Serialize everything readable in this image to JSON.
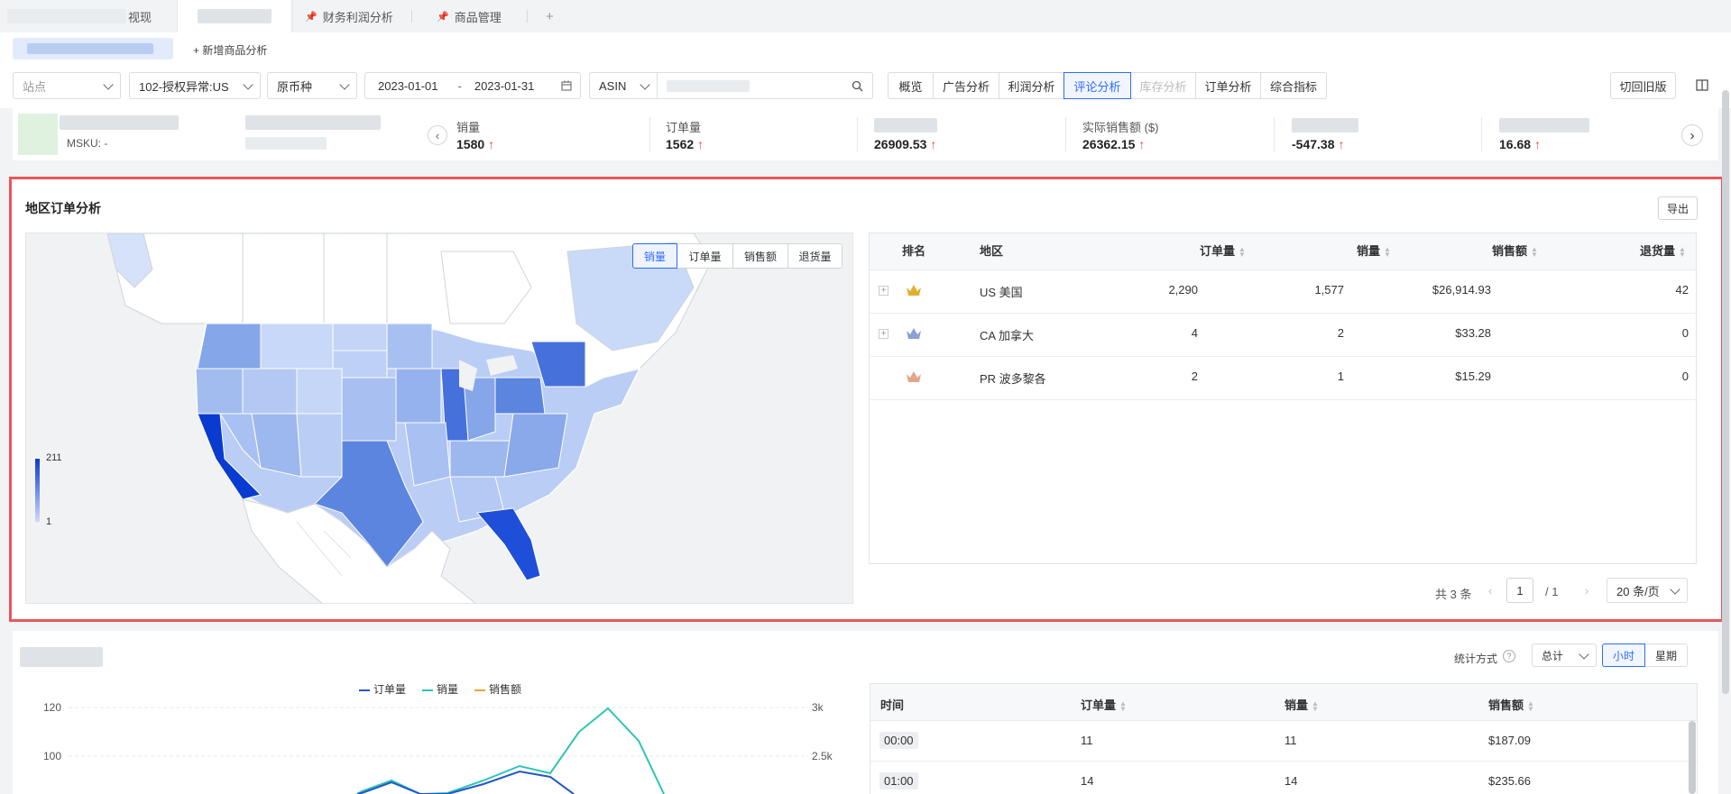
{
  "tabs": [
    {
      "label": "视现",
      "active": false
    },
    {
      "label": "",
      "active": true
    },
    {
      "label": "财务利润分析",
      "active": false
    },
    {
      "label": "商品管理",
      "active": false
    },
    {
      "label": "+",
      "active": false
    }
  ],
  "subbar": {
    "add_label": "+ 新增商品分析"
  },
  "filters": {
    "site_placeholder": "站点",
    "shop": "102-授权异常:US",
    "currency": "原币种",
    "date_start": "2023-01-01",
    "date_sep": "-",
    "date_end": "2023-01-31",
    "asin_type": "ASIN",
    "view_tabs": [
      "概览",
      "广告分析",
      "利润分析",
      "评论分析",
      "库存分析",
      "订单分析",
      "综合指标"
    ],
    "view_tab_active": "评论分析",
    "view_tab_disabled": "库存分析",
    "old_version": "切回旧版"
  },
  "metrics": {
    "msku_label": "MSKU: -",
    "items": [
      {
        "label": "销量",
        "value": "1580"
      },
      {
        "label": "订单量",
        "value": "1562"
      },
      {
        "label": "",
        "value": "26909.53"
      },
      {
        "label": "实际销售额 ($)",
        "value": "26362.15"
      },
      {
        "label": "",
        "value": "-547.38"
      },
      {
        "label": "",
        "value": "16.68"
      }
    ],
    "up_arrow": "↑"
  },
  "panel": {
    "title": "地区订单分析",
    "export": "导出",
    "map_tabs": [
      "销量",
      "订单量",
      "销售额",
      "退货量"
    ],
    "map_tab_active": "销量",
    "legend_max": "211",
    "legend_min": "1",
    "state_colors": {
      "highest": "#0a3bd0",
      "high": "#4a78e0",
      "mid": "#7da0ea",
      "low": "#b6cbf5",
      "lowest": "#cfdcf8",
      "none": "#ffffff"
    }
  },
  "table": {
    "headers": [
      "排名",
      "地区",
      "订单量",
      "销量",
      "销售额",
      "退货量"
    ],
    "rows": [
      {
        "region": "US 美国",
        "orders": "2,290",
        "sales": "1,577",
        "amount": "$26,914.93",
        "returns": "42",
        "crown": "#e0b030"
      },
      {
        "region": "CA 加拿大",
        "orders": "4",
        "sales": "2",
        "amount": "$33.28",
        "returns": "0",
        "crown": "#8aa0d6"
      },
      {
        "region": "PR 波多黎各",
        "orders": "2",
        "sales": "1",
        "amount": "$15.29",
        "returns": "0",
        "crown": "#e3a58a"
      }
    ],
    "pagination": {
      "total": "共 3 条",
      "page": "1",
      "of": "/ 1",
      "page_size": "20 条/页"
    }
  },
  "lower": {
    "stat_label": "统计方式",
    "stat_value": "总计",
    "toggle": [
      "小时",
      "星期"
    ],
    "toggle_active": "小时",
    "legend": [
      {
        "name": "订单量",
        "color": "#2457c5"
      },
      {
        "name": "销量",
        "color": "#2ec4b6"
      },
      {
        "name": "销售额",
        "color": "#f0a13a"
      }
    ],
    "y_left": [
      "120",
      "100"
    ],
    "y_right": [
      "3k",
      "2.5k"
    ],
    "hour_table": {
      "headers": [
        "时间",
        "订单量",
        "销量",
        "销售额"
      ],
      "rows": [
        {
          "time": "00:00",
          "orders": "11",
          "sales": "11",
          "amount": "$187.09"
        },
        {
          "time": "01:00",
          "orders": "14",
          "sales": "14",
          "amount": "$235.66"
        }
      ]
    }
  }
}
